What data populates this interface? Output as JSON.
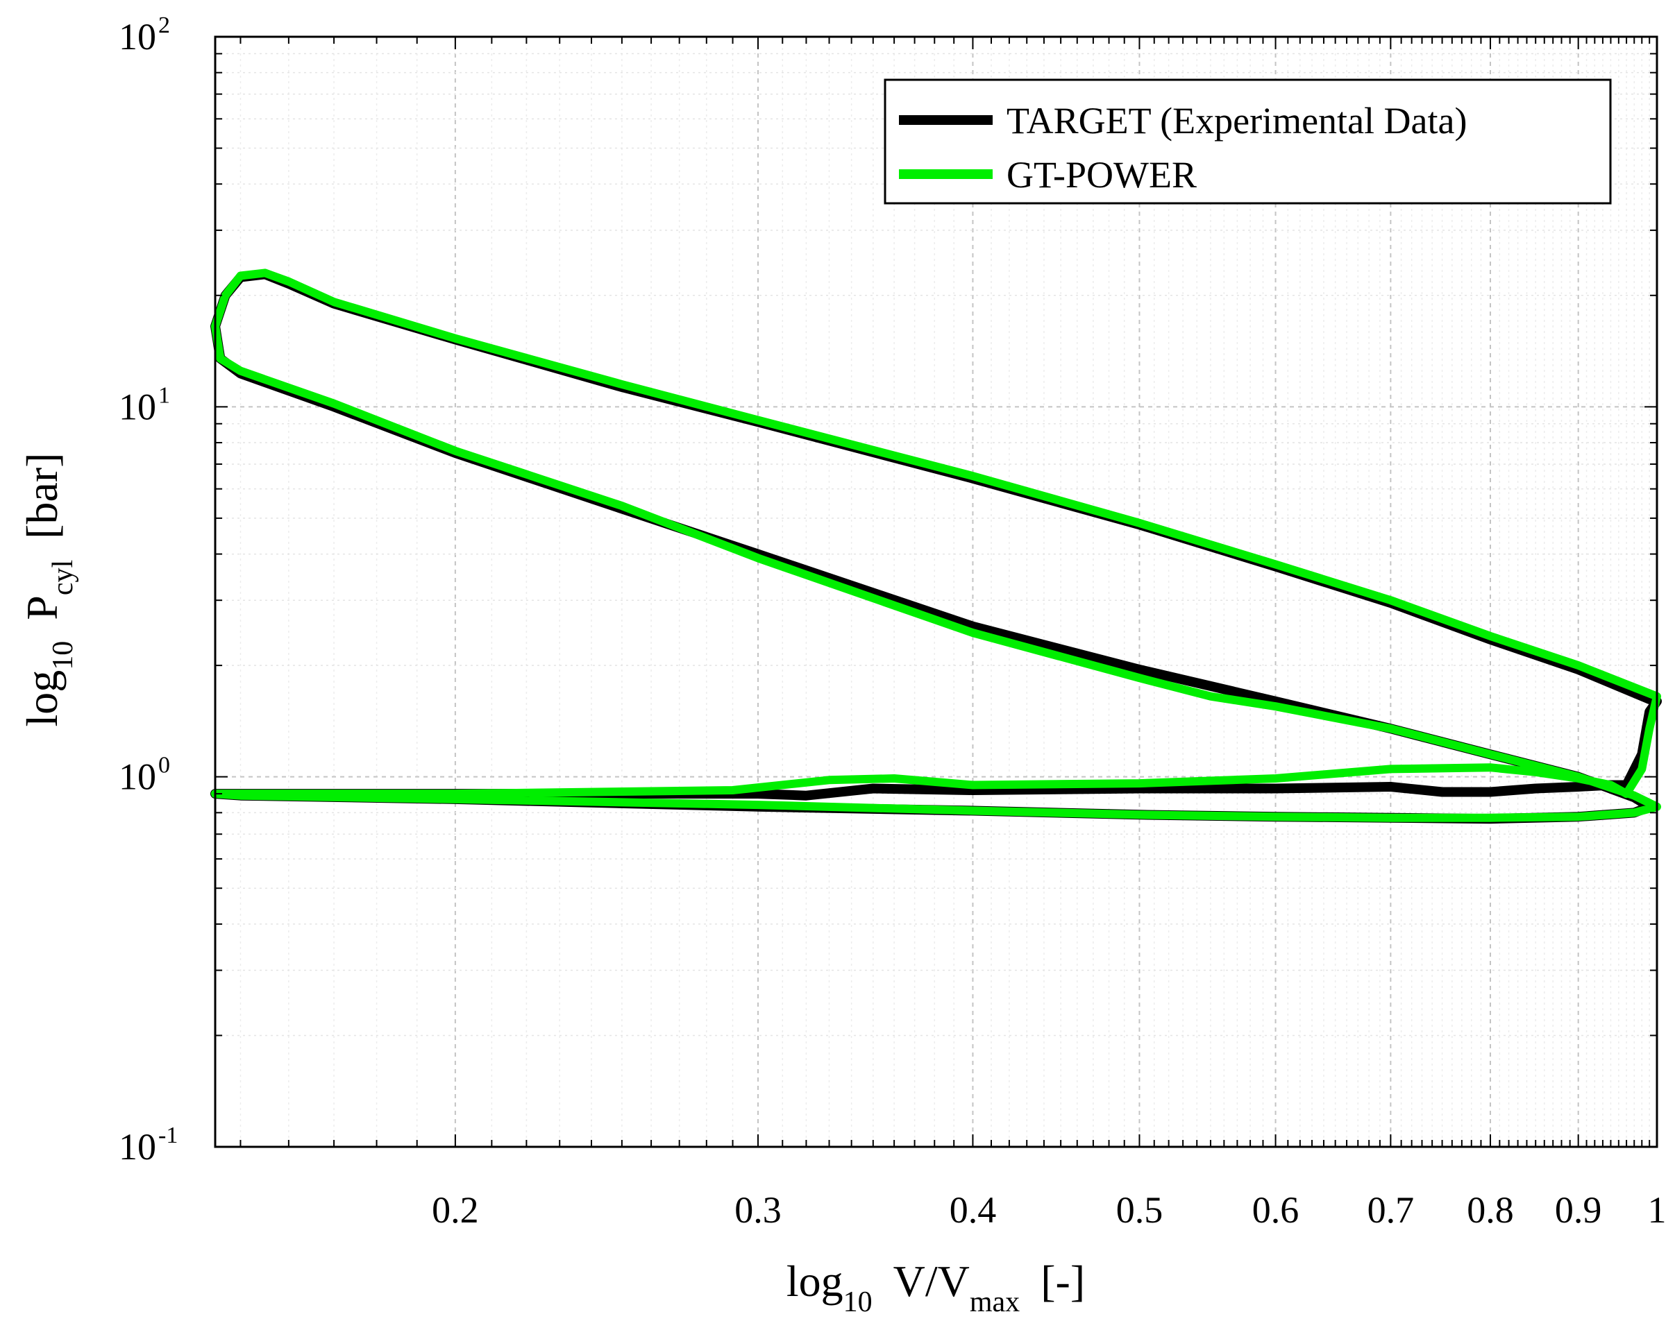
{
  "chart_data": {
    "type": "line",
    "x_scale": "log",
    "y_scale": "log",
    "xlim": [
      0.145,
      1.0
    ],
    "ylim": [
      0.1,
      100
    ],
    "x_ticks": [
      {
        "value": 0.2,
        "label": "0.2"
      },
      {
        "value": 0.3,
        "label": "0.3"
      },
      {
        "value": 0.4,
        "label": "0.4"
      },
      {
        "value": 0.5,
        "label": "0.5"
      },
      {
        "value": 0.6,
        "label": "0.6"
      },
      {
        "value": 0.7,
        "label": "0.7"
      },
      {
        "value": 0.8,
        "label": "0.8"
      },
      {
        "value": 0.9,
        "label": "0.9"
      },
      {
        "value": 1.0,
        "label": "1"
      }
    ],
    "y_ticks": [
      {
        "value": 0.1,
        "base": "10",
        "exp": "-1"
      },
      {
        "value": 1,
        "base": "10",
        "exp": "0"
      },
      {
        "value": 10,
        "base": "10",
        "exp": "1"
      },
      {
        "value": 100,
        "base": "10",
        "exp": "2"
      }
    ],
    "xlabel": {
      "pre": "log",
      "pre_sub": "10",
      "main": "V/V",
      "main_sub": "max",
      "post": "[-]"
    },
    "ylabel": {
      "pre": "log",
      "pre_sub": "10",
      "main": "P",
      "main_sub": "cyl",
      "post": "[bar]"
    },
    "grid": true,
    "legend_position": "top-right",
    "series": [
      {
        "name": "TARGET (Experimental Data)",
        "color": "#000000",
        "points": [
          [
            0.96,
            0.95
          ],
          [
            0.98,
            1.15
          ],
          [
            0.99,
            1.5
          ],
          [
            1.0,
            1.6
          ],
          [
            0.99,
            1.62
          ],
          [
            0.9,
            1.95
          ],
          [
            0.8,
            2.35
          ],
          [
            0.7,
            2.95
          ],
          [
            0.6,
            3.7
          ],
          [
            0.5,
            4.8
          ],
          [
            0.4,
            6.4
          ],
          [
            0.3,
            9.1
          ],
          [
            0.25,
            11.3
          ],
          [
            0.2,
            15.2
          ],
          [
            0.17,
            19.0
          ],
          [
            0.16,
            21.5
          ],
          [
            0.155,
            22.8
          ],
          [
            0.15,
            22.4
          ],
          [
            0.147,
            20.0
          ],
          [
            0.145,
            16.5
          ],
          [
            0.146,
            13.5
          ],
          [
            0.15,
            12.3
          ],
          [
            0.17,
            10.0
          ],
          [
            0.2,
            7.5
          ],
          [
            0.25,
            5.3
          ],
          [
            0.3,
            4.0
          ],
          [
            0.4,
            2.55
          ],
          [
            0.5,
            1.95
          ],
          [
            0.6,
            1.6
          ],
          [
            0.7,
            1.35
          ],
          [
            0.8,
            1.15
          ],
          [
            0.9,
            1.0
          ],
          [
            0.97,
            0.88
          ],
          [
            0.99,
            0.83
          ],
          [
            0.97,
            0.8
          ],
          [
            0.9,
            0.78
          ],
          [
            0.8,
            0.77
          ],
          [
            0.7,
            0.775
          ],
          [
            0.6,
            0.78
          ],
          [
            0.5,
            0.79
          ],
          [
            0.4,
            0.81
          ],
          [
            0.3,
            0.83
          ],
          [
            0.2,
            0.87
          ],
          [
            0.15,
            0.89
          ],
          [
            0.145,
            0.9
          ],
          [
            0.2,
            0.9
          ],
          [
            0.3,
            0.9
          ],
          [
            0.32,
            0.89
          ],
          [
            0.35,
            0.93
          ],
          [
            0.4,
            0.92
          ],
          [
            0.5,
            0.93
          ],
          [
            0.6,
            0.93
          ],
          [
            0.7,
            0.94
          ],
          [
            0.75,
            0.91
          ],
          [
            0.8,
            0.91
          ],
          [
            0.85,
            0.93
          ],
          [
            0.9,
            0.94
          ],
          [
            0.94,
            0.95
          ],
          [
            0.96,
            0.95
          ]
        ]
      },
      {
        "name": "GT-POWER",
        "color": "#00ee00",
        "points": [
          [
            0.96,
            0.9
          ],
          [
            0.98,
            1.05
          ],
          [
            0.99,
            1.35
          ],
          [
            1.0,
            1.65
          ],
          [
            0.99,
            1.68
          ],
          [
            0.9,
            2.0
          ],
          [
            0.8,
            2.4
          ],
          [
            0.7,
            3.0
          ],
          [
            0.6,
            3.75
          ],
          [
            0.5,
            4.85
          ],
          [
            0.4,
            6.5
          ],
          [
            0.3,
            9.2
          ],
          [
            0.25,
            11.5
          ],
          [
            0.2,
            15.3
          ],
          [
            0.17,
            19.2
          ],
          [
            0.16,
            21.8
          ],
          [
            0.155,
            23.0
          ],
          [
            0.15,
            22.6
          ],
          [
            0.147,
            20.0
          ],
          [
            0.145,
            16.5
          ],
          [
            0.146,
            13.5
          ],
          [
            0.15,
            12.5
          ],
          [
            0.17,
            10.2
          ],
          [
            0.2,
            7.6
          ],
          [
            0.25,
            5.4
          ],
          [
            0.3,
            3.9
          ],
          [
            0.4,
            2.45
          ],
          [
            0.5,
            1.85
          ],
          [
            0.55,
            1.65
          ],
          [
            0.6,
            1.55
          ],
          [
            0.7,
            1.35
          ],
          [
            0.8,
            1.15
          ],
          [
            0.9,
            1.0
          ],
          [
            0.97,
            0.89
          ],
          [
            1.0,
            0.83
          ],
          [
            0.97,
            0.8
          ],
          [
            0.9,
            0.78
          ],
          [
            0.8,
            0.775
          ],
          [
            0.7,
            0.775
          ],
          [
            0.6,
            0.78
          ],
          [
            0.5,
            0.79
          ],
          [
            0.4,
            0.81
          ],
          [
            0.3,
            0.84
          ],
          [
            0.2,
            0.87
          ],
          [
            0.15,
            0.89
          ],
          [
            0.145,
            0.9
          ],
          [
            0.2,
            0.9
          ],
          [
            0.29,
            0.92
          ],
          [
            0.33,
            0.98
          ],
          [
            0.36,
            0.99
          ],
          [
            0.4,
            0.95
          ],
          [
            0.5,
            0.96
          ],
          [
            0.6,
            0.99
          ],
          [
            0.7,
            1.05
          ],
          [
            0.8,
            1.06
          ],
          [
            0.85,
            1.03
          ],
          [
            0.9,
            0.99
          ],
          [
            0.94,
            0.95
          ],
          [
            0.96,
            0.9
          ]
        ]
      }
    ]
  }
}
